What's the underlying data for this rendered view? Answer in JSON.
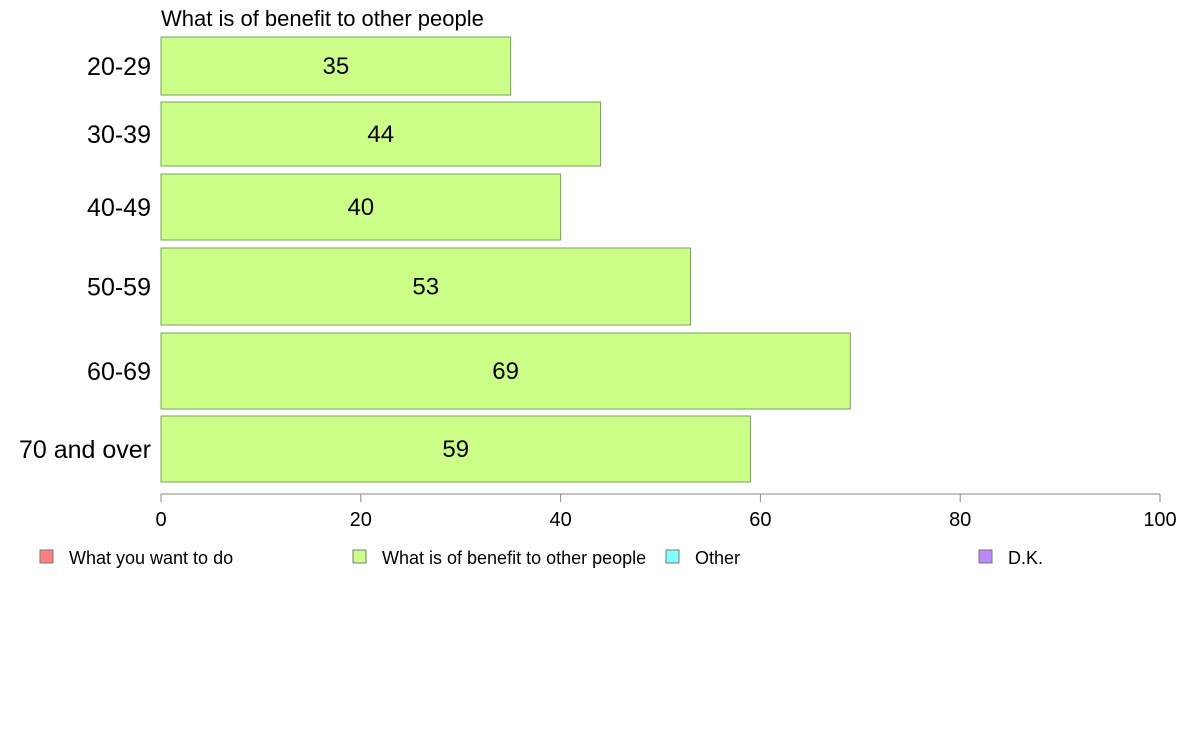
{
  "chart_data": {
    "type": "bar",
    "orientation": "horizontal",
    "title": "What is of benefit to other people",
    "categories": [
      "20-29",
      "30-39",
      "40-49",
      "50-59",
      "60-69",
      "70 and over"
    ],
    "series": [
      {
        "name": "What is of benefit to other people",
        "values": [
          35,
          44,
          40,
          53,
          69,
          59
        ]
      }
    ],
    "xlim": [
      0,
      100
    ],
    "xticks": [
      0,
      20,
      40,
      60,
      80,
      100
    ],
    "grid": false,
    "legend": {
      "placement": "bottom",
      "items": [
        {
          "label": "What you want to do",
          "color": "#ff8080"
        },
        {
          "label": "What is of benefit to other people",
          "color": "#ccff88"
        },
        {
          "label": "Other",
          "color": "#80ffff"
        },
        {
          "label": "D.K.",
          "color": "#bb88ff"
        }
      ]
    },
    "bar_color": "#ccff88",
    "bar_stroke": "#7aa05a"
  }
}
